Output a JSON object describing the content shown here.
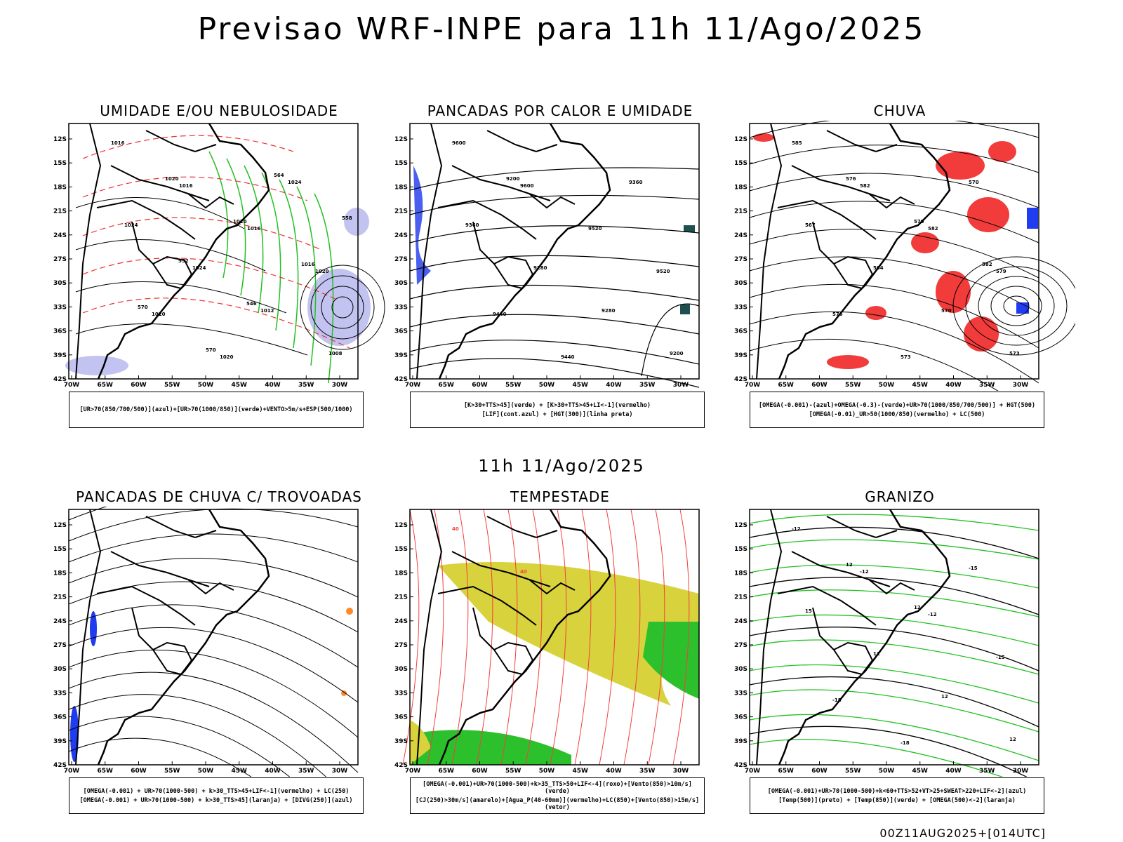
{
  "title": "Previsao WRF-INPE  para 11h 11/Ago/2025",
  "subtitle": "11h 11/Ago/2025",
  "footer": "00Z11AUG2025+[014UTC]",
  "axis": {
    "lat_labels": [
      "12S",
      "15S",
      "18S",
      "21S",
      "24S",
      "27S",
      "30S",
      "33S",
      "36S",
      "39S",
      "42S"
    ],
    "lon_labels": [
      "70W",
      "65W",
      "60W",
      "55W",
      "50W",
      "45W",
      "40W",
      "35W",
      "30W"
    ]
  },
  "panels": [
    {
      "id": "umidade",
      "title": "UMIDADE E/OU NEBULOSIDADE",
      "legend": [
        "[UR>70(850/700/500)](azul)+[UR>70(1000/850)](verde)+VENTO>5m/s+ESP(500/1000)"
      ],
      "contour_labels": [
        "1016",
        "1016",
        "1016",
        "1020",
        "1020",
        "1020",
        "1024",
        "1024",
        "1024",
        "1012",
        "1008",
        "1020",
        "1020",
        "1016",
        "570",
        "570",
        "564",
        "558",
        "552",
        "546"
      ]
    },
    {
      "id": "pancadas-calor",
      "title": "PANCADAS POR CALOR E UMIDADE",
      "legend": [
        "[K>30+TTS>45](verde) + [K>30+TTS>45+LI<-1](vermelho)",
        "[LIF](cont.azul) + [HGT(300)](linha preta)"
      ],
      "contour_labels": [
        "9600",
        "9600",
        "9520",
        "9520",
        "9440",
        "9440",
        "9360",
        "9360",
        "9280",
        "9280",
        "9200",
        "9200"
      ]
    },
    {
      "id": "chuva",
      "title": "CHUVA",
      "legend": [
        "[OMEGA(-0.001)-(azul)+OMEGA(-0.3)-(verde)+UR>70(1000/850/700/500)] + HGT(500)",
        "[OMEGA(-0.01)_UR>50(1000/850)(vermelho) + LC(500)"
      ],
      "contour_labels": [
        "585",
        "582",
        "582",
        "579",
        "576",
        "573",
        "570",
        "567",
        "564",
        "570",
        "573",
        "576",
        "579",
        "582"
      ]
    },
    {
      "id": "pancadas-trovoadas",
      "title": "PANCADAS DE CHUVA C/ TROVOADAS",
      "legend": [
        "[OMEGA(-0.001) + UR>70(1000-500) + k>30_TTS>45+LIF<-1](vermelho) + LC(250)",
        "[OMEGA(-0.001) + UR>70(1000-500) + k>30_TTS>45](laranja) + [DIVG(250)](azul)"
      ],
      "contour_labels": []
    },
    {
      "id": "tempestade",
      "title": "TEMPESTADE",
      "legend": [
        "[OMEGA(-0.001)+UR>70(1000-500)+k>35_TTS>50+LIF<-4](roxo)+[Vento(850)>10m/s](verde)",
        "[CJ(250)>30m/s](amarelo)+[Agua_P(40-60mm)](vermelho)+LC(850)+[Vento(850)>15m/s](vetor)"
      ],
      "contour_labels": [
        "40",
        "40"
      ]
    },
    {
      "id": "granizo",
      "title": "GRANIZO",
      "legend": [
        "[OMEGA(-0.001)+UR>70(1000-500)+k<60+TTS>52+VT>25+SWEAT>220+LIF<-2](azul)",
        "[Temp(500)](preto) + [Temp(850)](verde) + [OMEGA(500)<-2](laranja)"
      ],
      "contour_labels": [
        "-12",
        "-12",
        "-12",
        "-15",
        "-18",
        "-18",
        "-15",
        "15",
        "12",
        "12",
        "12",
        "12",
        "12"
      ]
    }
  ]
}
